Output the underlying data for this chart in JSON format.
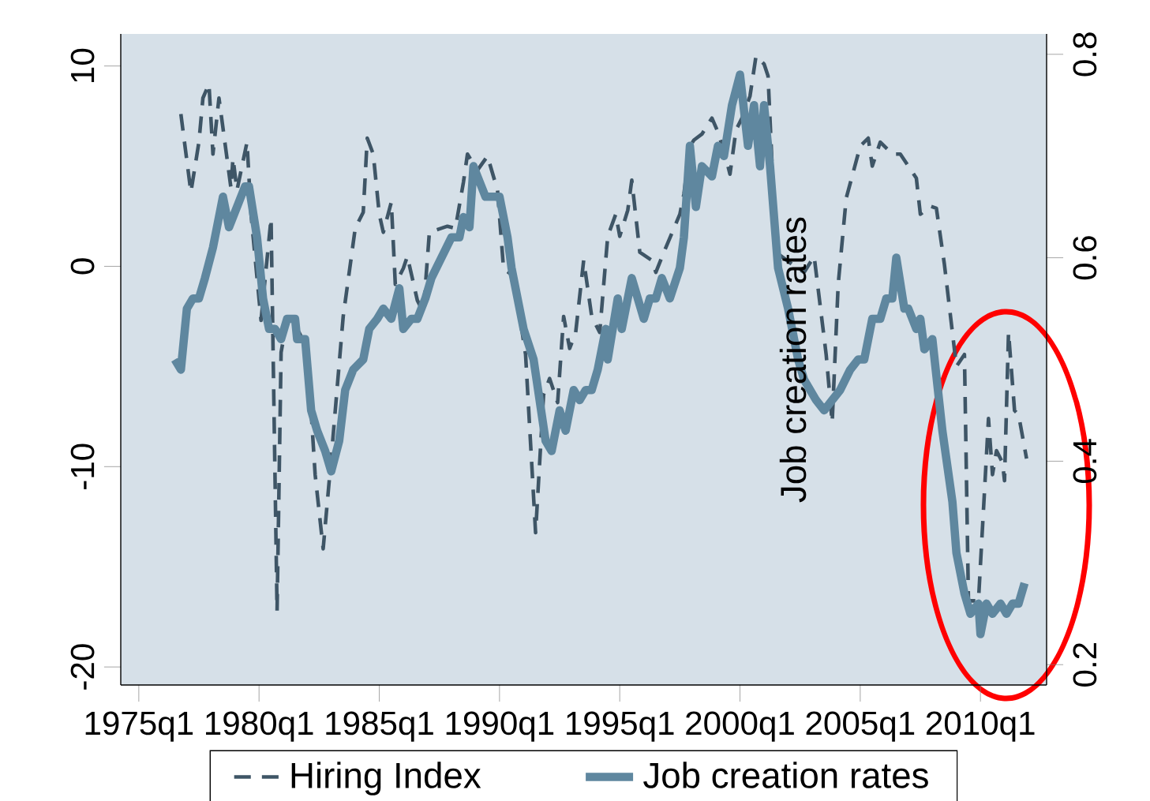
{
  "chart_data": {
    "type": "line",
    "xlim": [
      "1974-04",
      "2012-10"
    ],
    "ylim": [
      -20.9,
      11.6
    ],
    "y2lim": [
      0.18,
      0.82
    ],
    "xticks": [
      {
        "value": "1975-01",
        "label": "1975q1"
      },
      {
        "value": "1980-01",
        "label": "1980q1"
      },
      {
        "value": "1985-01",
        "label": "1985q1"
      },
      {
        "value": "1990-01",
        "label": "1990q1"
      },
      {
        "value": "1995-01",
        "label": "1995q1"
      },
      {
        "value": "2000-01",
        "label": "2000q1"
      },
      {
        "value": "2005-01",
        "label": "2005q1"
      },
      {
        "value": "2010-01",
        "label": "2010q1"
      }
    ],
    "yticks": [
      -20,
      -10,
      0,
      10
    ],
    "y2ticks": [
      0.2,
      0.4,
      0.6,
      0.8
    ],
    "y2label": "Job creation rates",
    "legend": "bottom",
    "series": [
      {
        "name": "Hiring Index",
        "color": "#3e5566",
        "line_style": "dashed",
        "axis": "y",
        "x": [
          "1976-10",
          "1977-03",
          "1977-07",
          "1977-09",
          "1977-12",
          "1978-02",
          "1978-05",
          "1978-07",
          "1978-11",
          "1978-12",
          "1979-02",
          "1979-07",
          "1979-09",
          "1980-02",
          "1980-07",
          "1980-10",
          "1980-12",
          "1981-03",
          "1981-09",
          "1982-01",
          "1982-05",
          "1982-09",
          "1983-01",
          "1983-07",
          "1984-01",
          "1984-05",
          "1984-07",
          "1984-10",
          "1985-01",
          "1985-03",
          "1985-07",
          "1985-09",
          "1986-01",
          "1986-03",
          "1986-08",
          "1986-11",
          "1987-02",
          "1987-11",
          "1988-03",
          "1988-07",
          "1988-09",
          "1989-02",
          "1989-07",
          "1989-12",
          "1990-03",
          "1990-08",
          "1991-02",
          "1991-07",
          "1991-11",
          "1992-02",
          "1992-06",
          "1992-09",
          "1992-12",
          "1993-03",
          "1993-07",
          "1993-11",
          "1994-03",
          "1994-07",
          "1994-11",
          "1995-01",
          "1995-05",
          "1995-07",
          "1995-11",
          "1996-05",
          "1996-07",
          "1996-11",
          "1997-07",
          "1997-09",
          "1997-12",
          "1998-02",
          "1998-06",
          "1998-11",
          "1999-02",
          "1999-06",
          "1999-08",
          "1999-11",
          "2000-02",
          "2000-06",
          "2000-09",
          "2001-01",
          "2001-03",
          "2001-07",
          "2002-03",
          "2002-09",
          "2003-02",
          "2003-08",
          "2003-11",
          "2004-02",
          "2004-06",
          "2005-01",
          "2005-05",
          "2005-07",
          "2005-11",
          "2006-05",
          "2006-09",
          "2007-01",
          "2007-05",
          "2007-07",
          "2007-12",
          "2008-03",
          "2008-07",
          "2009-01",
          "2009-05",
          "2009-07",
          "2009-12",
          "2010-05",
          "2010-07",
          "2010-09",
          "2010-12",
          "2011-01",
          "2011-03",
          "2011-06",
          "2011-08",
          "2011-12"
        ],
        "values": [
          7.6,
          3.7,
          6.2,
          8.4,
          9.1,
          5.6,
          8.4,
          6.9,
          3.9,
          5.4,
          3.8,
          6.2,
          2.6,
          -2.7,
          2.4,
          -17.2,
          -4.3,
          -2.6,
          -3.3,
          -4.1,
          -10.4,
          -14.1,
          -9.6,
          -2.5,
          1.9,
          2.7,
          6.4,
          5.6,
          2.6,
          1.7,
          3.2,
          -0.9,
          -0.1,
          0.5,
          -1.7,
          -2.3,
          1.7,
          2.0,
          1.9,
          4.2,
          5.6,
          4.8,
          5.5,
          3.8,
          -0.1,
          -0.5,
          -4.4,
          -13.3,
          -6.4,
          -5.6,
          -6.8,
          -2.5,
          -4.1,
          -3.3,
          0.3,
          -2.5,
          -3.3,
          1.5,
          2.6,
          1.5,
          2.8,
          4.3,
          0.7,
          0.3,
          -0.3,
          0.7,
          2.6,
          3.6,
          6.0,
          6.3,
          6.6,
          7.4,
          6.7,
          5.4,
          4.6,
          6.8,
          7.4,
          8.5,
          10.5,
          10.1,
          9.5,
          0.7,
          0.1,
          -0.3,
          0.5,
          -4.4,
          -7.8,
          -0.9,
          3.4,
          6.0,
          6.4,
          5.0,
          6.2,
          5.6,
          5.6,
          5.0,
          4.4,
          2.6,
          3.0,
          2.9,
          0.1,
          -5.0,
          -4.4,
          -16.7,
          -16.7,
          -7.6,
          -10.4,
          -9.2,
          -9.8,
          -10.7,
          -3.3,
          -7.2,
          -7.4,
          -9.6
        ]
      },
      {
        "name": "Job creation rates",
        "color": "#5f879f",
        "line_style": "solid",
        "axis": "y2",
        "x": [
          "1976-07",
          "1976-10",
          "1977-01",
          "1977-04",
          "1977-07",
          "1977-10",
          "1978-02",
          "1978-07",
          "1978-10",
          "1979-02",
          "1979-06",
          "1979-08",
          "1979-12",
          "1980-03",
          "1980-06",
          "1980-09",
          "1980-12",
          "1981-03",
          "1981-07",
          "1981-08",
          "1981-12",
          "1982-03",
          "1982-06",
          "1982-10",
          "1983-01",
          "1983-05",
          "1983-08",
          "1983-12",
          "1984-05",
          "1984-08",
          "1984-12",
          "1985-03",
          "1985-07",
          "1985-11",
          "1986-01",
          "1986-05",
          "1986-08",
          "1986-12",
          "1987-03",
          "1987-08",
          "1988-01",
          "1988-05",
          "1988-07",
          "1988-10",
          "1988-12",
          "1989-06",
          "1989-11",
          "1990-01",
          "1990-05",
          "1990-07",
          "1991-01",
          "1991-06",
          "1991-09",
          "1991-12",
          "1992-03",
          "1992-07",
          "1992-10",
          "1993-02",
          "1993-05",
          "1993-08",
          "1993-11",
          "1994-02",
          "1994-06",
          "1994-07",
          "1994-12",
          "1995-02",
          "1995-07",
          "1996-01",
          "1996-04",
          "1996-07",
          "1996-10",
          "1997-02",
          "1997-07",
          "1997-09",
          "1997-12",
          "1998-03",
          "1998-06",
          "1998-11",
          "1999-02",
          "1999-05",
          "1999-09",
          "2000-01",
          "2000-05",
          "2000-08",
          "2000-11",
          "2001-01",
          "2001-04",
          "2001-08",
          "2002-01",
          "2002-06",
          "2002-09",
          "2003-03",
          "2003-07",
          "2003-11",
          "2004-03",
          "2004-08",
          "2004-12",
          "2005-03",
          "2005-07",
          "2005-11",
          "2006-02",
          "2006-05",
          "2006-07",
          "2006-11",
          "2007-01",
          "2007-05",
          "2007-07",
          "2007-09",
          "2008-01",
          "2008-06",
          "2008-11",
          "2009-01",
          "2009-05",
          "2009-08",
          "2009-12",
          "2010-01",
          "2010-04",
          "2010-07",
          "2010-11",
          "2011-02",
          "2011-05",
          "2011-08",
          "2011-11"
        ],
        "values": [
          0.5,
          0.49,
          0.55,
          0.56,
          0.56,
          0.58,
          0.61,
          0.66,
          0.63,
          0.65,
          0.67,
          0.67,
          0.62,
          0.56,
          0.53,
          0.53,
          0.52,
          0.54,
          0.54,
          0.52,
          0.52,
          0.45,
          0.43,
          0.41,
          0.39,
          0.42,
          0.47,
          0.49,
          0.5,
          0.53,
          0.54,
          0.55,
          0.54,
          0.57,
          0.53,
          0.54,
          0.54,
          0.56,
          0.58,
          0.6,
          0.62,
          0.62,
          0.64,
          0.63,
          0.69,
          0.66,
          0.66,
          0.66,
          0.62,
          0.59,
          0.53,
          0.5,
          0.46,
          0.42,
          0.41,
          0.45,
          0.43,
          0.47,
          0.46,
          0.47,
          0.47,
          0.49,
          0.53,
          0.5,
          0.56,
          0.53,
          0.58,
          0.54,
          0.56,
          0.56,
          0.58,
          0.56,
          0.59,
          0.62,
          0.71,
          0.65,
          0.69,
          0.68,
          0.71,
          0.7,
          0.75,
          0.78,
          0.71,
          0.75,
          0.69,
          0.75,
          0.69,
          0.59,
          0.55,
          0.5,
          0.48,
          0.46,
          0.45,
          0.46,
          0.47,
          0.49,
          0.5,
          0.5,
          0.54,
          0.54,
          0.56,
          0.56,
          0.6,
          0.55,
          0.55,
          0.53,
          0.54,
          0.51,
          0.52,
          0.43,
          0.36,
          0.31,
          0.27,
          0.25,
          0.26,
          0.23,
          0.26,
          0.25,
          0.26,
          0.25,
          0.26,
          0.26,
          0.28
        ]
      }
    ]
  }
}
